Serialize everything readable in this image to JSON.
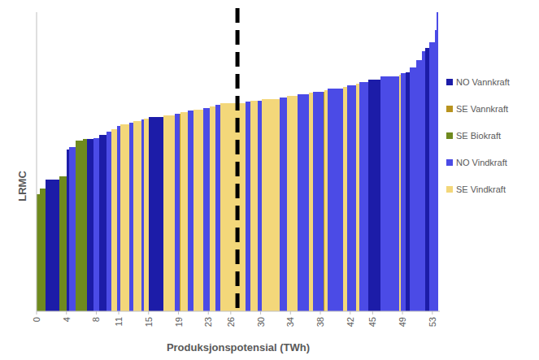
{
  "chart_data": {
    "type": "bar",
    "xlabel": "Produksjonspotensial (TWh)",
    "ylabel": "LRMC",
    "xlim": [
      0,
      54
    ],
    "xticks": [
      0,
      4,
      8,
      11,
      15,
      19,
      23,
      26,
      30,
      34,
      38,
      42,
      45,
      49,
      53
    ],
    "ylim": [
      0,
      100
    ],
    "tick_labels": "x",
    "legend": "right",
    "vline": 26.9,
    "series": [
      {
        "name": "NO Vannkraft",
        "color": "#1c1ca8",
        "x": [
          1.2,
          4.0,
          6.8,
          8.4,
          15.0,
          44.4,
          49.4,
          52.0
        ],
        "widths": [
          1.8,
          0.4,
          0.8,
          1.0,
          2.0,
          1.6,
          0.6,
          0.6
        ],
        "values": [
          44,
          54,
          57.5,
          59,
          65,
          77.5,
          80,
          88
        ]
      },
      {
        "name": "SE Vannkraft",
        "color": "#b8931e",
        "x": [
          19.2,
          38.4
        ],
        "widths": [
          0.1,
          0.1
        ],
        "values": [
          66,
          73.5
        ]
      },
      {
        "name": "SE Biokraft",
        "color": "#6f8a1e",
        "x": [
          0,
          0.4,
          3.0,
          5.2,
          6.2
        ],
        "widths": [
          0.4,
          0.8,
          1.0,
          1.0,
          0.6
        ],
        "values": [
          39,
          41,
          45,
          57,
          57.5
        ]
      },
      {
        "name": "NO Vindkraft",
        "color": "#4b4be6",
        "x": [
          4.4,
          7.6,
          9.4,
          10.8,
          12.4,
          14.0,
          18.5,
          20.2,
          22.3,
          24.0,
          28.0,
          29.6,
          32.5,
          35.0,
          37.0,
          39.0,
          41.6,
          43.2,
          46.0,
          48.8,
          50.0,
          50.8,
          51.6,
          52.6,
          53.4,
          53.6
        ],
        "widths": [
          0.8,
          0.8,
          0.6,
          0.4,
          0.6,
          0.4,
          0.7,
          0.8,
          0.9,
          0.6,
          0.6,
          0.6,
          1.0,
          1.5,
          1.4,
          2.0,
          1.2,
          1.2,
          2.6,
          0.6,
          0.8,
          0.8,
          0.4,
          0.8,
          0.2,
          0.2
        ],
        "values": [
          55,
          58,
          60,
          62,
          63,
          64,
          66,
          67,
          68,
          69,
          70,
          70.5,
          71.5,
          72.5,
          73.5,
          74.5,
          75.5,
          76.5,
          78.5,
          79.5,
          81.5,
          84,
          87,
          90,
          94,
          100
        ]
      },
      {
        "name": "SE Vindkraft",
        "color": "#f3d77a",
        "x": [
          10.0,
          11.2,
          13.0,
          14.4,
          17.0,
          19.3,
          21.0,
          23.2,
          24.6,
          28.6,
          30.2,
          33.5,
          36.5,
          38.5,
          41.0,
          42.8,
          48.6
        ],
        "widths": [
          0.8,
          1.2,
          1.0,
          0.6,
          1.5,
          0.9,
          1.3,
          0.8,
          3.4,
          1.0,
          2.3,
          1.5,
          0.5,
          0.5,
          0.6,
          0.4,
          0.2
        ],
        "values": [
          61,
          62.5,
          63.5,
          64.5,
          65.5,
          66.5,
          67.5,
          68.5,
          69.5,
          70.5,
          71,
          72,
          73,
          74,
          75,
          76,
          79
        ]
      }
    ]
  }
}
